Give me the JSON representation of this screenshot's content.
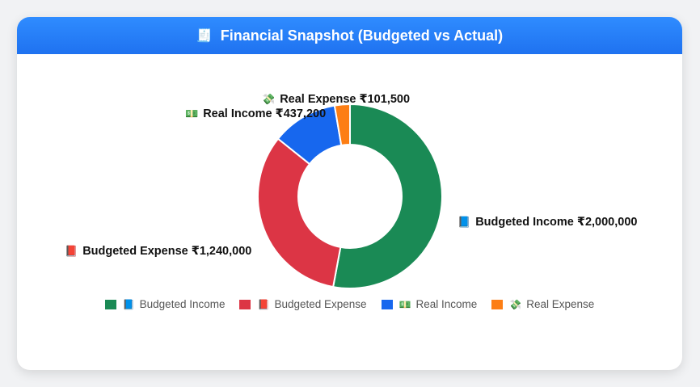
{
  "header": {
    "icon": "🧾",
    "title": "Financial Snapshot (Budgeted vs Actual)"
  },
  "chart_data": {
    "type": "pie",
    "variant": "doughnut",
    "title": "Financial Snapshot (Budgeted vs Actual)",
    "legend_position": "bottom",
    "series": [
      {
        "name": "Budgeted Income",
        "emoji": "📘",
        "value": 2000000,
        "value_label": "₹2,000,000",
        "color": "#1a8a55"
      },
      {
        "name": "Budgeted Expense",
        "emoji": "📕",
        "value": 1240000,
        "value_label": "₹1,240,000",
        "color": "#dc3545"
      },
      {
        "name": "Real Income",
        "emoji": "💵",
        "value": 437200,
        "value_label": "₹437,200",
        "color": "#1767ee"
      },
      {
        "name": "Real Expense",
        "emoji": "💸",
        "value": 101500,
        "value_label": "₹101,500",
        "color": "#fd7e14"
      }
    ]
  }
}
